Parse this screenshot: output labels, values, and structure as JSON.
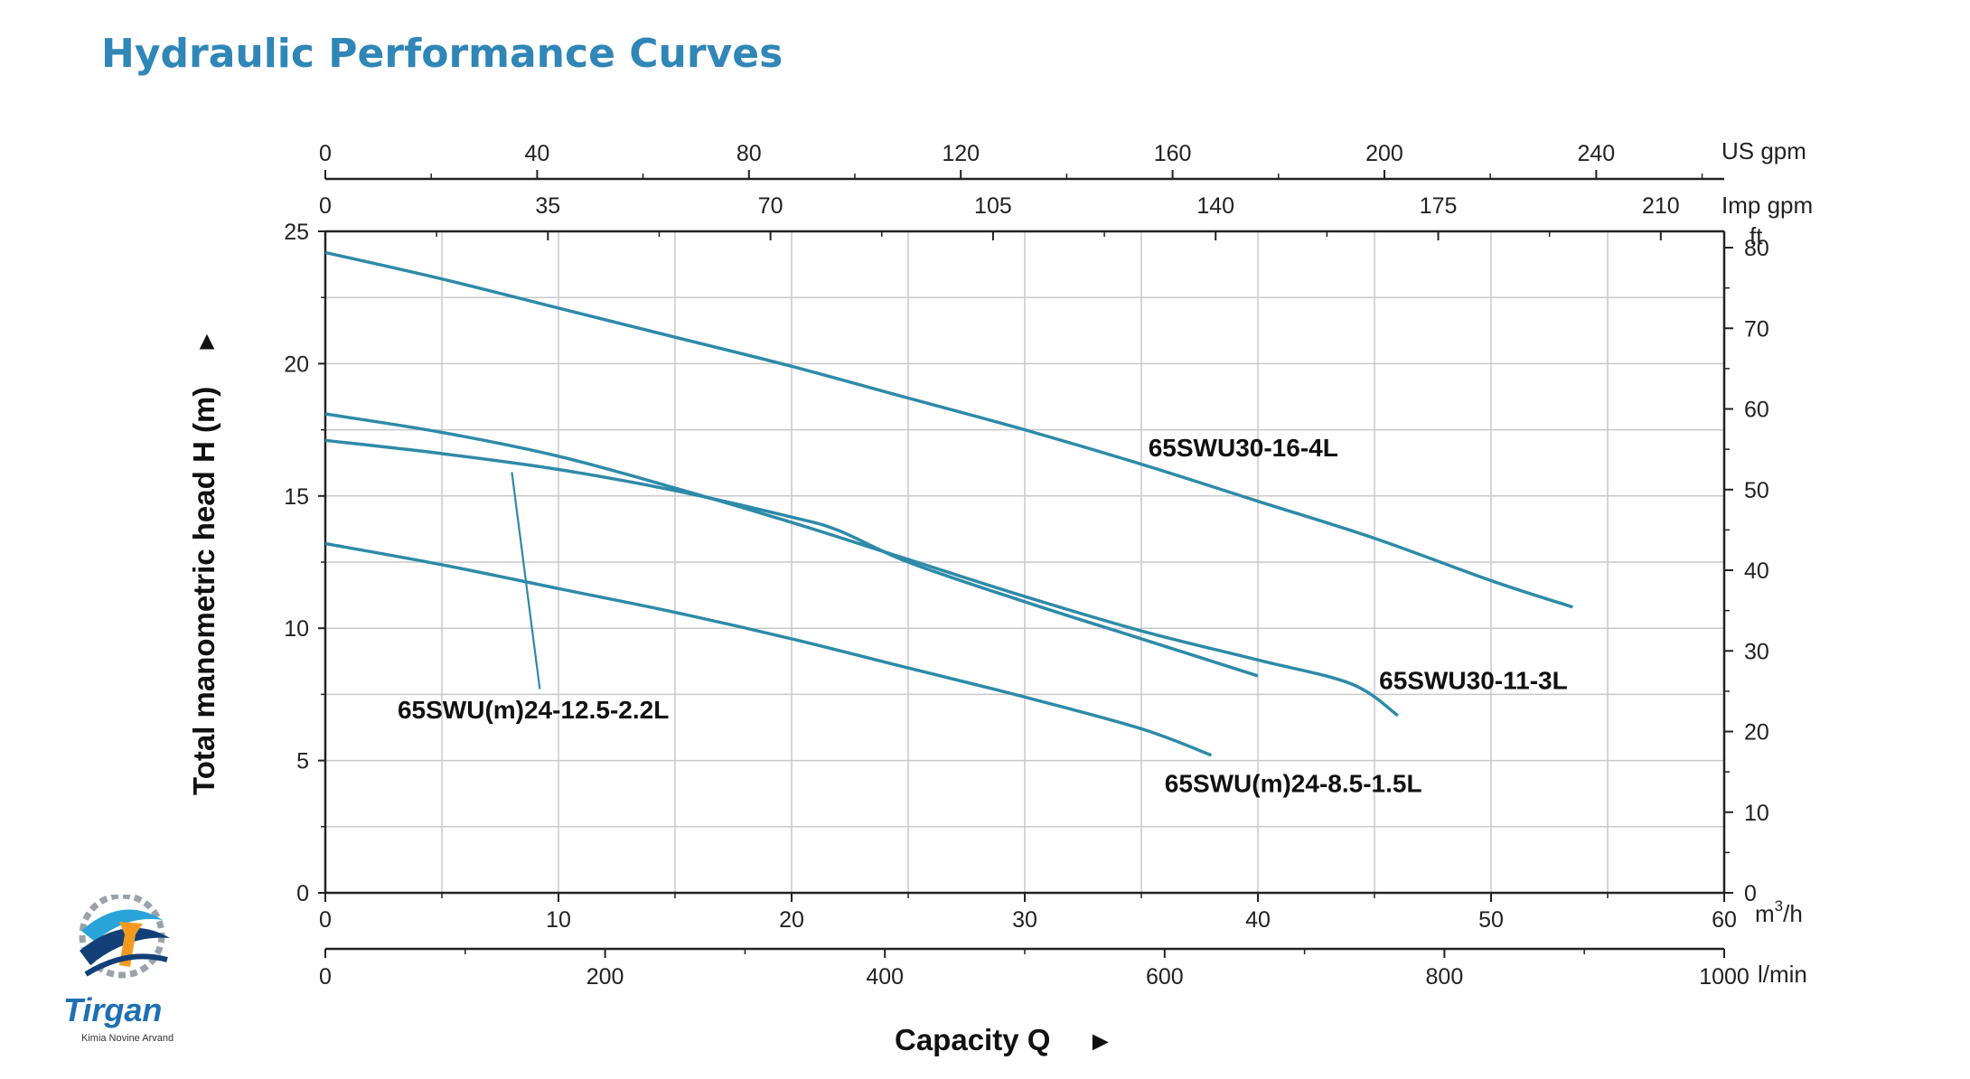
{
  "page": {
    "title": "Hydraulic Performance Curves"
  },
  "logo": {
    "brand": "Tirgan",
    "tagline": "Kimia Novine Arvand"
  },
  "chart_data": {
    "type": "line",
    "title": "",
    "xlabel": "Capacity Q",
    "ylabel": "Total manometric head H (m)",
    "xlim": [
      0,
      60
    ],
    "ylim": [
      0,
      25
    ],
    "x_unit": "m³/h",
    "grid": true,
    "x_ticks": [
      0,
      10,
      20,
      30,
      40,
      50,
      60
    ],
    "y_ticks": [
      0,
      5,
      10,
      15,
      20,
      25
    ],
    "secondary_axes": {
      "lpm": {
        "unit": "l/min",
        "ticks": [
          0,
          200,
          400,
          600,
          800,
          1000
        ]
      },
      "us_gpm": {
        "unit": "US gpm",
        "ticks": [
          0,
          40,
          80,
          120,
          160,
          200,
          240
        ]
      },
      "imp_gpm": {
        "unit": "Imp gpm",
        "ticks": [
          0,
          35,
          70,
          105,
          140,
          175,
          210
        ]
      },
      "ft": {
        "unit": "ft",
        "ticks": [
          0,
          10,
          20,
          30,
          40,
          50,
          60,
          70,
          80
        ]
      }
    },
    "series": [
      {
        "name": "65SWU30-16-4L",
        "points": [
          [
            0,
            24.2
          ],
          [
            5,
            23.2
          ],
          [
            10,
            22.1
          ],
          [
            15,
            21.0
          ],
          [
            20,
            19.9
          ],
          [
            25,
            18.7
          ],
          [
            30,
            17.5
          ],
          [
            35,
            16.2
          ],
          [
            40,
            14.8
          ],
          [
            45,
            13.4
          ],
          [
            50,
            11.8
          ],
          [
            53.5,
            10.8
          ]
        ]
      },
      {
        "name": "65SWU30-11-3L",
        "points": [
          [
            0,
            18.1
          ],
          [
            5,
            17.4
          ],
          [
            10,
            16.5
          ],
          [
            15,
            15.3
          ],
          [
            20,
            14.0
          ],
          [
            25,
            12.6
          ],
          [
            30,
            11.2
          ],
          [
            35,
            9.9
          ],
          [
            40,
            8.8
          ],
          [
            44,
            7.9
          ],
          [
            46,
            6.7
          ]
        ]
      },
      {
        "name": "65SWU(m)24-12.5-2.2L",
        "points": [
          [
            0,
            17.1
          ],
          [
            5,
            16.6
          ],
          [
            10,
            16.0
          ],
          [
            15,
            15.2
          ],
          [
            20,
            14.2
          ],
          [
            22,
            13.7
          ],
          [
            25,
            12.5
          ],
          [
            30,
            11.0
          ],
          [
            35,
            9.6
          ],
          [
            40,
            8.2
          ]
        ]
      },
      {
        "name": "65SWU(m)24-8.5-1.5L",
        "points": [
          [
            0,
            13.2
          ],
          [
            5,
            12.4
          ],
          [
            10,
            11.5
          ],
          [
            15,
            10.6
          ],
          [
            20,
            9.6
          ],
          [
            25,
            8.5
          ],
          [
            30,
            7.4
          ],
          [
            35,
            6.2
          ],
          [
            38,
            5.2
          ]
        ]
      }
    ]
  }
}
